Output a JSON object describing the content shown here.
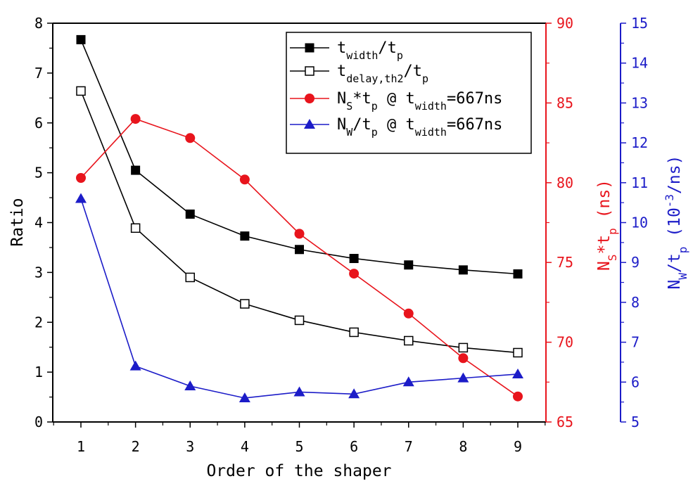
{
  "chart_data": {
    "type": "line",
    "xlabel": "Order of the shaper",
    "x": [
      1,
      2,
      3,
      4,
      5,
      6,
      7,
      8,
      9
    ],
    "axes": {
      "left": {
        "label": "Ratio",
        "range": [
          0,
          8
        ],
        "ticks": [
          "0",
          "1",
          "2",
          "3",
          "4",
          "5",
          "6",
          "7",
          "8"
        ],
        "color": "#000000"
      },
      "right1": {
        "label_main": "N",
        "label_sub": "S",
        "label_mid": "*t",
        "label_sub2": "p",
        "label_unit": " (ns)",
        "range": [
          65,
          90
        ],
        "ticks": [
          "65",
          "70",
          "75",
          "80",
          "85",
          "90"
        ],
        "color": "#e8141c"
      },
      "right2": {
        "label_main": "N",
        "label_sub": "W",
        "label_mid": "/t",
        "label_sub2": "p",
        "label_unit": " (10",
        "label_sup": "-3",
        "label_unit2": "/ns)",
        "range": [
          5,
          15
        ],
        "ticks": [
          "5",
          "6",
          "7",
          "8",
          "9",
          "10",
          "11",
          "12",
          "13",
          "14",
          "15"
        ],
        "color": "#1c1cc8"
      }
    },
    "x_ticks": [
      "1",
      "2",
      "3",
      "4",
      "5",
      "6",
      "7",
      "8",
      "9"
    ],
    "series": [
      {
        "name": "t_width/t_p",
        "axis": "left",
        "color": "#000000",
        "marker": "square-filled",
        "values": [
          7.67,
          5.05,
          4.17,
          3.73,
          3.46,
          3.28,
          3.15,
          3.05,
          2.97
        ]
      },
      {
        "name": "t_delay,th2/t_p",
        "axis": "left",
        "color": "#000000",
        "marker": "square-open",
        "values": [
          6.64,
          3.89,
          2.9,
          2.37,
          2.04,
          1.8,
          1.63,
          1.49,
          1.39
        ]
      },
      {
        "name": "N_S*t_p @ t_width=667ns",
        "axis": "right1",
        "color": "#e8141c",
        "marker": "circle",
        "values": [
          80.3,
          84.0,
          82.8,
          80.2,
          76.8,
          74.3,
          71.8,
          69.0,
          66.6
        ]
      },
      {
        "name": "N_W/t_p @ t_width=667ns",
        "axis": "right2",
        "color": "#1c1cc8",
        "marker": "triangle",
        "values": [
          10.6,
          6.4,
          5.9,
          5.6,
          5.75,
          5.7,
          6.0,
          6.1,
          6.2
        ]
      }
    ],
    "legend": [
      {
        "main": "t",
        "sub": "width",
        "rest": "/t",
        "sub2": "p",
        "tail": ""
      },
      {
        "main": "t",
        "sub": "delay,th2",
        "rest": "/t",
        "sub2": "p",
        "tail": ""
      },
      {
        "main": "N",
        "sub": "S",
        "rest": "*t",
        "sub2": "p",
        "tail": " @ t",
        "sub3": "width",
        "tail2": "=667ns"
      },
      {
        "main": "N",
        "sub": "W",
        "rest": "/t",
        "sub2": "p",
        "tail": " @ t",
        "sub3": "width",
        "tail2": "=667ns"
      }
    ],
    "legend_position": "top-right"
  }
}
